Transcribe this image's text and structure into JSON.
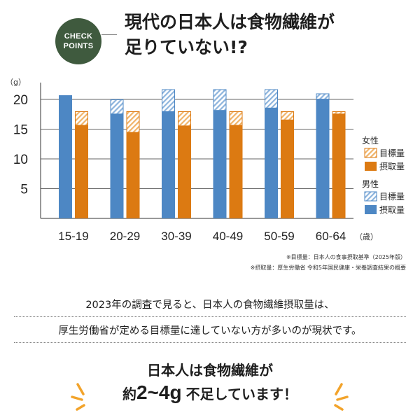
{
  "badge": {
    "line1": "CHECK",
    "line2": "POINTS"
  },
  "title": {
    "line1": "現代の日本人は食物繊維が",
    "line2": "足りていない!?"
  },
  "chart_data": {
    "type": "bar",
    "y_unit": "（g）",
    "x_unit": "（歳）",
    "categories": [
      "15-19",
      "20-29",
      "30-39",
      "40-49",
      "50-59",
      "60-64"
    ],
    "yticks": [
      5,
      10,
      15,
      20
    ],
    "ylim": [
      0,
      24
    ],
    "grid": true,
    "series": [
      {
        "name": "男性 目標量",
        "group": "男性",
        "kind": "目標量",
        "values": [
          20.7,
          20.0,
          21.7,
          21.7,
          21.7,
          21.0
        ]
      },
      {
        "name": "男性 摂取量",
        "group": "男性",
        "kind": "摂取量",
        "values": [
          20.7,
          17.6,
          18.0,
          18.2,
          18.6,
          20.1
        ]
      },
      {
        "name": "女性 目標量",
        "group": "女性",
        "kind": "目標量",
        "values": [
          18.0,
          18.0,
          18.0,
          18.0,
          18.0,
          18.0
        ]
      },
      {
        "name": "女性 摂取量",
        "group": "女性",
        "kind": "摂取量",
        "values": [
          15.7,
          14.5,
          15.6,
          15.7,
          16.6,
          17.6
        ]
      }
    ],
    "legend": {
      "female_label": "女性",
      "male_label": "男性",
      "target_label": "目標量",
      "intake_label": "摂取量",
      "placement": "right"
    },
    "colors": {
      "male": "#4d87c4",
      "male_hatch": "#8db4dd",
      "female": "#dc7a12",
      "female_hatch": "#f0b46a"
    }
  },
  "notes": {
    "line1": "※目標量：日本人の食事摂取基準（2025年版）",
    "line2": "※摂取量：厚生労働省 令和5年国民健康・栄養調査結果の概要"
  },
  "description": {
    "line1": "2023年の調査で見ると、日本人の食物繊維摂取量は、",
    "line2": "厚生労働省が定める目標量に達していない方が多いのが現状です。"
  },
  "conclusion": {
    "line1": "日本人は食物繊維が",
    "prefix": "約",
    "value": "2~4g",
    "suffix": "不足しています！"
  },
  "decoration": {
    "burst_color": "#f2a32a"
  }
}
